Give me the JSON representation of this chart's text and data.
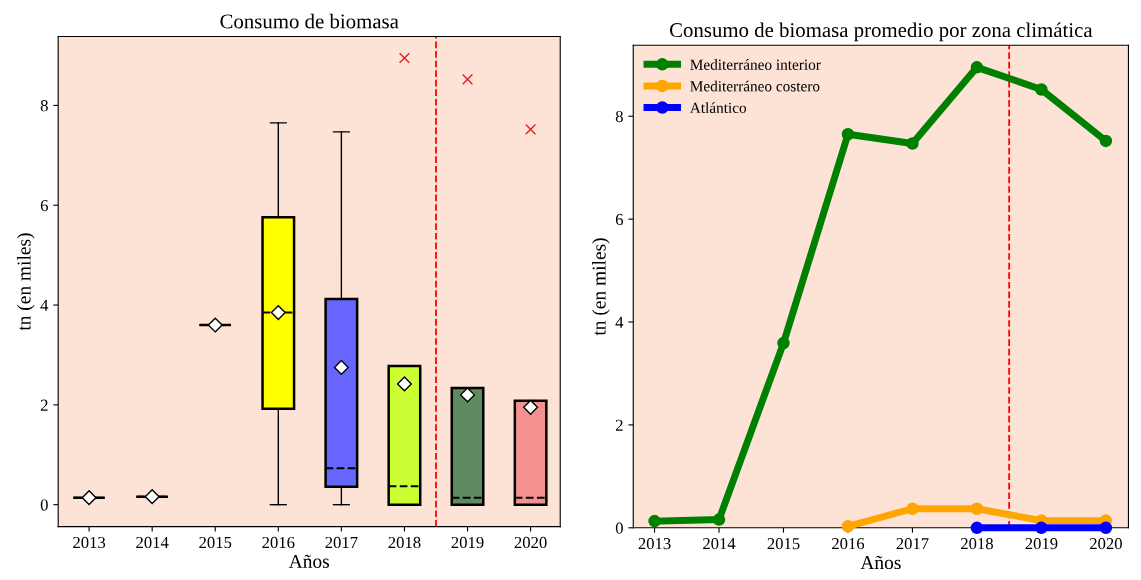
{
  "chart_data": [
    {
      "type": "box",
      "title": "Consumo de biomasa",
      "xlabel": "Años",
      "ylabel": "tn (en miles)",
      "x": [
        2013,
        2014,
        2015,
        2016,
        2017,
        2018,
        2019,
        2020
      ],
      "xlim": [
        2012.51,
        2020.47
      ],
      "xticks": [
        2013,
        2014,
        2015,
        2016,
        2017,
        2018,
        2019,
        2020
      ],
      "ylim": [
        -0.44,
        9.38
      ],
      "yticks": [
        0,
        2,
        4,
        6,
        8
      ],
      "grid": false,
      "colors": [
        null,
        null,
        null,
        "#ffff00",
        "#6666ff",
        "#ccff33",
        "#5f8a5f",
        "#f49090"
      ],
      "boxes": [
        {
          "low": 0.14,
          "q1": 0.14,
          "median": 0.14,
          "q3": 0.14,
          "high": 0.14,
          "mean": 0.14
        },
        {
          "low": 0.16,
          "q1": 0.16,
          "median": 0.16,
          "q3": 0.16,
          "high": 0.16,
          "mean": 0.16
        },
        {
          "low": 3.6,
          "q1": 3.6,
          "median": 3.6,
          "q3": 3.6,
          "high": 3.6,
          "mean": 3.6
        },
        {
          "low": 0,
          "q1": 1.92,
          "median": 3.85,
          "q3": 5.76,
          "high": 7.65,
          "mean": 3.85
        },
        {
          "low": 0,
          "q1": 0.36,
          "median": 0.73,
          "q3": 4.12,
          "high": 7.47,
          "mean": 2.75
        },
        {
          "low": 0,
          "q1": 0,
          "median": 0.37,
          "q3": 2.78,
          "high": 2.78,
          "mean": 2.42,
          "outliers": [
            8.95
          ]
        },
        {
          "low": 0,
          "q1": 0,
          "median": 0.14,
          "q3": 2.34,
          "high": 2.34,
          "mean": 2.2,
          "outliers": [
            8.52
          ]
        },
        {
          "low": 0,
          "q1": 0,
          "median": 0.14,
          "q3": 2.08,
          "high": 2.08,
          "mean": 1.95,
          "outliers": [
            7.52
          ]
        }
      ],
      "ref_lines": [
        {
          "axis": "x",
          "value": 2018.5,
          "color": "#ff0000",
          "line_style": "dashed"
        }
      ]
    },
    {
      "type": "line",
      "title": "Consumo de biomasa promedio por zona climática",
      "xlabel": "Años",
      "ylabel": "tn (en miles)",
      "xlim": [
        2012.67,
        2020.35
      ],
      "xticks": [
        2013,
        2014,
        2015,
        2016,
        2017,
        2018,
        2019,
        2020
      ],
      "ylim": [
        0,
        9.38
      ],
      "yticks": [
        0,
        2,
        4,
        6,
        8
      ],
      "grid": false,
      "legend": "top left",
      "marker": "circle",
      "line_style": "solid",
      "series": [
        {
          "name": "Mediterráneo interior",
          "color": "#008000",
          "x": [
            2013,
            2014,
            2015,
            2016,
            2017,
            2018,
            2019,
            2020
          ],
          "values": [
            0.13,
            0.16,
            3.59,
            7.65,
            7.47,
            8.95,
            8.52,
            7.52
          ]
        },
        {
          "name": "Mediterráneo costero",
          "color": "#ffa500",
          "x": [
            2016,
            2017,
            2018,
            2019,
            2020
          ],
          "values": [
            0.03,
            0.37,
            0.37,
            0.14,
            0.14
          ]
        },
        {
          "name": "Atlántico",
          "color": "#0000ff",
          "x": [
            2018,
            2019,
            2020
          ],
          "values": [
            0,
            0,
            0
          ]
        }
      ],
      "ref_lines": [
        {
          "axis": "x",
          "value": 2018.5,
          "color": "#ff0000",
          "line_style": "dashed"
        }
      ]
    }
  ]
}
